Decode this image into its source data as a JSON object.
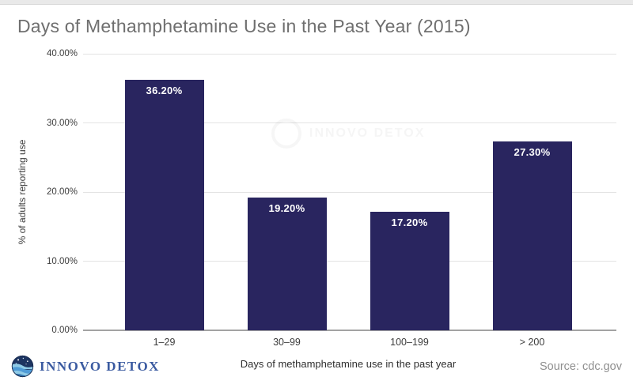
{
  "page": {
    "title": "Days of Methamphetamine Use in the Past Year (2015)",
    "source": "Source: cdc.gov",
    "brand": {
      "name": "INNOVO DETOX"
    },
    "watermark_text": "INNOVO DETOX"
  },
  "chart_data": {
    "type": "bar",
    "title": "Days of Methamphetamine Use in the Past Year (2015)",
    "categories": [
      "1–29",
      "30–99",
      "100–199",
      "> 200"
    ],
    "values": [
      36.2,
      19.2,
      17.2,
      27.3
    ],
    "value_labels": [
      "36.20%",
      "19.20%",
      "17.20%",
      "27.30%"
    ],
    "xlabel": "Days of methamphetamine use in the past year",
    "ylabel": "% of adults reporting use",
    "ylim": [
      0,
      40
    ],
    "y_ticks": [
      {
        "value": 0,
        "label": "0.00%"
      },
      {
        "value": 10,
        "label": "10.00%"
      },
      {
        "value": 20,
        "label": "20.00%"
      },
      {
        "value": 30,
        "label": "30.00%"
      },
      {
        "value": 40,
        "label": "40.00%"
      }
    ],
    "grid": true,
    "legend": false,
    "bar_color": "#29255f",
    "value_label_color": "#ffffff"
  }
}
